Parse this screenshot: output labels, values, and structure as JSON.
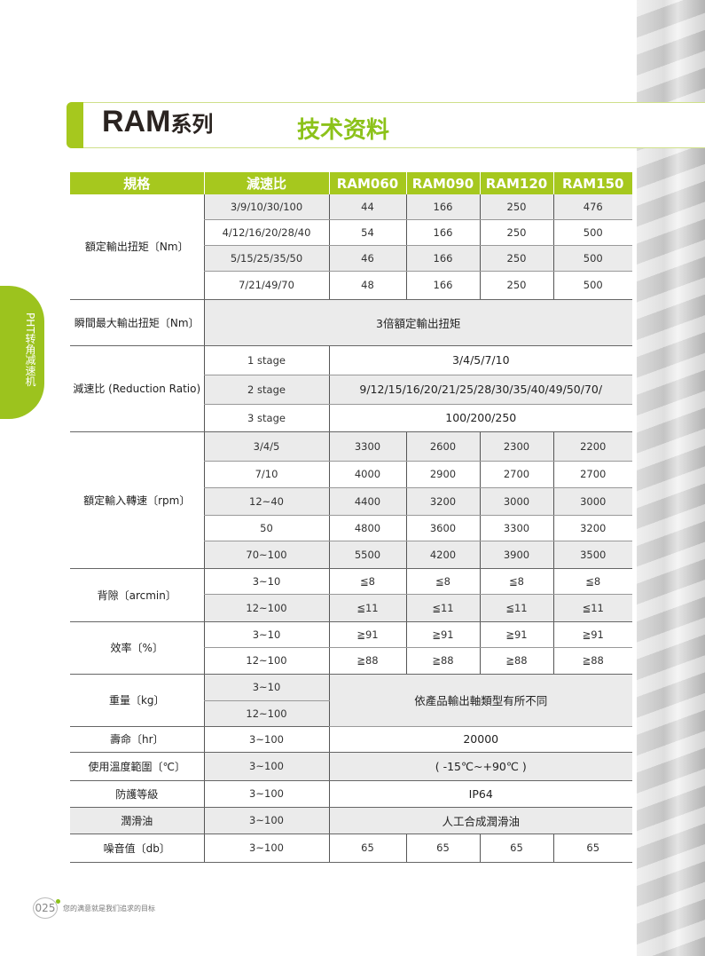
{
  "header": {
    "series": "RAM",
    "series_suffix": "系列",
    "section": "技术资料"
  },
  "side_tab": "PHT转角减速机",
  "colors": {
    "accent": "#a6c81e",
    "shade": "#ebebeb"
  },
  "table": {
    "headers": [
      "規格",
      "減速比",
      "RAM060",
      "RAM090",
      "RAM120",
      "RAM150"
    ],
    "sections": [
      {
        "label": "額定輸出扭矩〔Nm〕",
        "rows": [
          {
            "ratio": "3/9/10/30/100",
            "values": [
              "44",
              "166",
              "250",
              "476"
            ]
          },
          {
            "ratio": "4/12/16/20/28/40",
            "values": [
              "54",
              "166",
              "250",
              "500"
            ]
          },
          {
            "ratio": "5/15/25/35/50",
            "values": [
              "46",
              "166",
              "250",
              "500"
            ]
          },
          {
            "ratio": "7/21/49/70",
            "values": [
              "48",
              "166",
              "250",
              "500"
            ]
          }
        ]
      },
      {
        "label": "瞬間最大輸出扭矩〔Nm〕",
        "rows": [
          {
            "full": "3倍額定輸出扭矩"
          }
        ]
      },
      {
        "label": "減速比 (Reduction Ratio)",
        "rows": [
          {
            "ratio": "1 stage",
            "span": "3/4/5/7/10"
          },
          {
            "ratio": "2 stage",
            "span": "9/12/15/16/20/21/25/28/30/35/40/49/50/70/"
          },
          {
            "ratio": "3 stage",
            "span": "100/200/250"
          }
        ]
      },
      {
        "label": "額定輸入轉速〔rpm〕",
        "rows": [
          {
            "ratio": "3/4/5",
            "values": [
              "3300",
              "2600",
              "2300",
              "2200"
            ]
          },
          {
            "ratio": "7/10",
            "values": [
              "4000",
              "2900",
              "2700",
              "2700"
            ]
          },
          {
            "ratio": "12~40",
            "values": [
              "4400",
              "3200",
              "3000",
              "3000"
            ]
          },
          {
            "ratio": "50",
            "values": [
              "4800",
              "3600",
              "3300",
              "3200"
            ]
          },
          {
            "ratio": "70~100",
            "values": [
              "5500",
              "4200",
              "3900",
              "3500"
            ]
          }
        ]
      },
      {
        "label": "背隙〔arcmin〕",
        "rows": [
          {
            "ratio": "3~10",
            "values": [
              "≦8",
              "≦8",
              "≦8",
              "≦8"
            ]
          },
          {
            "ratio": "12~100",
            "values": [
              "≦11",
              "≦11",
              "≦11",
              "≦11"
            ]
          }
        ]
      },
      {
        "label": "效率〔%〕",
        "rows": [
          {
            "ratio": "3~10",
            "values": [
              "≧91",
              "≧91",
              "≧91",
              "≧91"
            ]
          },
          {
            "ratio": "12~100",
            "values": [
              "≧88",
              "≧88",
              "≧88",
              "≧88"
            ]
          }
        ]
      },
      {
        "label": "重量〔kg〕",
        "rows": [
          {
            "ratio": "3~10",
            "span": "依產品輸出軸類型有所不同",
            "span_rows": 2
          },
          {
            "ratio": "12~100"
          }
        ]
      },
      {
        "label": "壽命〔hr〕",
        "rows": [
          {
            "ratio": "3~100",
            "span": "20000"
          }
        ]
      },
      {
        "label": "使用溫度範圍〔℃〕",
        "rows": [
          {
            "ratio": "3~100",
            "span": "( -15℃~+90℃ )"
          }
        ]
      },
      {
        "label": "防護等級",
        "rows": [
          {
            "ratio": "3~100",
            "span": "IP64"
          }
        ]
      },
      {
        "label": "潤滑油",
        "rows": [
          {
            "ratio": "3~100",
            "span": "人工合成潤滑油"
          }
        ]
      },
      {
        "label": "噪音值〔db〕",
        "rows": [
          {
            "ratio": "3~100",
            "values": [
              "65",
              "65",
              "65",
              "65"
            ]
          }
        ]
      }
    ]
  },
  "footer": {
    "page": "025",
    "slogan": "您的满意就是我们追求的目标"
  }
}
